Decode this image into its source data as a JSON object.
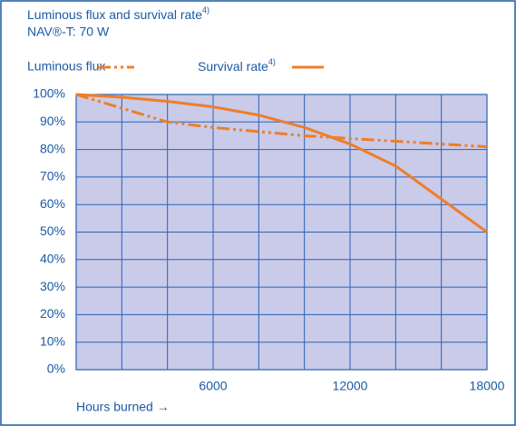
{
  "chart_data": {
    "type": "line",
    "title": "Luminous flux and survival rate",
    "title_note": "4)",
    "subtitle": "NAV®-T: 70 W",
    "x_label": "Hours burned →",
    "x": [
      0,
      2000,
      4000,
      6000,
      8000,
      10000,
      12000,
      14000,
      16000,
      18000
    ],
    "series": [
      {
        "name": "Luminous flux",
        "color": "#f07d28",
        "dash": "dashdot",
        "values": [
          100,
          95,
          90,
          88,
          86.5,
          85,
          84,
          83,
          82,
          81
        ]
      },
      {
        "name": "Survival rate",
        "name_note": "4)",
        "color": "#f07d28",
        "dash": "solid",
        "values": [
          100,
          99,
          97.5,
          95.5,
          92.5,
          88,
          82,
          74,
          62,
          50
        ]
      }
    ],
    "xlim": [
      0,
      18000
    ],
    "xticks": [
      6000,
      12000,
      18000
    ],
    "xgrid": [
      2000,
      4000,
      6000,
      8000,
      10000,
      12000,
      14000,
      16000
    ],
    "ylim": [
      0,
      100
    ],
    "yticks": [
      {
        "value": 0,
        "label": "0%"
      },
      {
        "value": 10,
        "label": "10%"
      },
      {
        "value": 20,
        "label": "20%"
      },
      {
        "value": 30,
        "label": "30%"
      },
      {
        "value": 40,
        "label": "40%"
      },
      {
        "value": 50,
        "label": "50%"
      },
      {
        "value": 60,
        "label": "60%"
      },
      {
        "value": 70,
        "label": "70%"
      },
      {
        "value": 80,
        "label": "80%"
      },
      {
        "value": 90,
        "label": "90%"
      },
      {
        "value": 100,
        "label": "100%"
      }
    ],
    "grid": true
  }
}
